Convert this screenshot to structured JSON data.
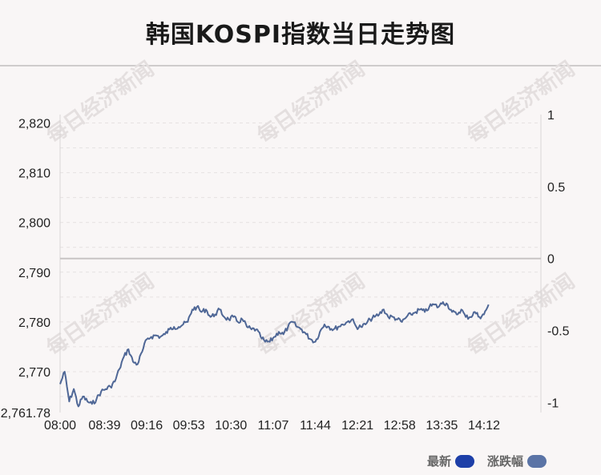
{
  "title": "韩国KOSPI指数当日走势图",
  "watermark": "每日经济新闻",
  "legend": [
    {
      "label": "最新",
      "color": "#1d3fa8"
    },
    {
      "label": "涨跌幅",
      "color": "#5b74a6"
    }
  ],
  "chart_data": {
    "type": "line",
    "title": "韩国KOSPI指数当日走势图",
    "x_ticks": [
      "08:00",
      "08:39",
      "09:16",
      "09:53",
      "10:30",
      "11:07",
      "11:44",
      "12:21",
      "12:58",
      "13:35",
      "14:12"
    ],
    "y_left_ticks": [
      "2,820",
      "2,810",
      "2,800",
      "2,790",
      "2,780",
      "2,770",
      "2,761.78"
    ],
    "y_right_ticks": [
      "1",
      "0.5",
      "0",
      "-0.5",
      "-1"
    ],
    "y_left_range": [
      2761.78,
      2821.7
    ],
    "y_right_range": [
      -1.07,
      1
    ],
    "prev_close_pct": 0,
    "line_color": "#4f6796",
    "series": [
      {
        "name": "最新",
        "x": [
          "08:00",
          "08:04",
          "08:08",
          "08:12",
          "08:16",
          "08:20",
          "08:24",
          "08:28",
          "08:32",
          "08:36",
          "08:40",
          "08:44",
          "08:48",
          "08:52",
          "08:56",
          "09:00",
          "09:04",
          "09:08",
          "09:12",
          "09:16",
          "09:20",
          "09:24",
          "09:28",
          "09:32",
          "09:36",
          "09:40",
          "09:44",
          "09:48",
          "09:52",
          "09:56",
          "10:00",
          "10:04",
          "10:08",
          "10:12",
          "10:16",
          "10:20",
          "10:24",
          "10:28",
          "10:32",
          "10:36",
          "10:40",
          "10:44",
          "10:48",
          "10:52",
          "10:56",
          "11:00",
          "11:04",
          "11:08",
          "11:12",
          "11:16",
          "11:20",
          "11:24",
          "11:28",
          "11:32",
          "11:36",
          "11:40",
          "11:44",
          "11:48",
          "11:52",
          "11:56",
          "12:00",
          "12:04",
          "12:08",
          "12:12",
          "12:16",
          "12:20",
          "12:24",
          "12:28",
          "12:32",
          "12:36",
          "12:40",
          "12:44",
          "12:48",
          "12:52",
          "12:56",
          "13:00",
          "13:04",
          "13:08",
          "13:12",
          "13:16",
          "13:20",
          "13:24",
          "13:28",
          "13:32",
          "13:36",
          "13:40",
          "13:44",
          "13:48",
          "13:52",
          "13:56",
          "14:00",
          "14:04",
          "14:08",
          "14:12",
          "14:16"
        ],
        "values": [
          2767.5,
          2770.0,
          2764.0,
          2766.5,
          2763.0,
          2765.0,
          2764.0,
          2763.5,
          2764.5,
          2766.0,
          2766.5,
          2767.0,
          2768.0,
          2770.5,
          2773.0,
          2774.5,
          2772.0,
          2771.5,
          2774.0,
          2776.5,
          2777.0,
          2777.3,
          2777.0,
          2777.5,
          2778.5,
          2779.0,
          2779.0,
          2779.5,
          2780.0,
          2782.5,
          2783.0,
          2782.0,
          2782.5,
          2781.0,
          2781.5,
          2782.5,
          2781.0,
          2780.5,
          2781.0,
          2780.0,
          2780.5,
          2779.0,
          2778.5,
          2778.5,
          2777.0,
          2776.0,
          2776.0,
          2777.0,
          2778.0,
          2777.5,
          2779.0,
          2780.0,
          2779.0,
          2778.5,
          2777.5,
          2776.5,
          2776.0,
          2778.0,
          2779.5,
          2779.0,
          2778.5,
          2779.0,
          2779.5,
          2780.0,
          2780.5,
          2779.0,
          2779.0,
          2779.5,
          2780.5,
          2781.0,
          2781.5,
          2782.5,
          2781.0,
          2781.0,
          2780.5,
          2780.0,
          2781.0,
          2781.5,
          2782.0,
          2782.5,
          2782.0,
          2783.0,
          2783.5,
          2783.0,
          2784.0,
          2783.5,
          2782.0,
          2781.5,
          2782.5,
          2781.0,
          2781.0,
          2782.0,
          2781.0,
          2781.5,
          2783.5
        ]
      }
    ]
  }
}
